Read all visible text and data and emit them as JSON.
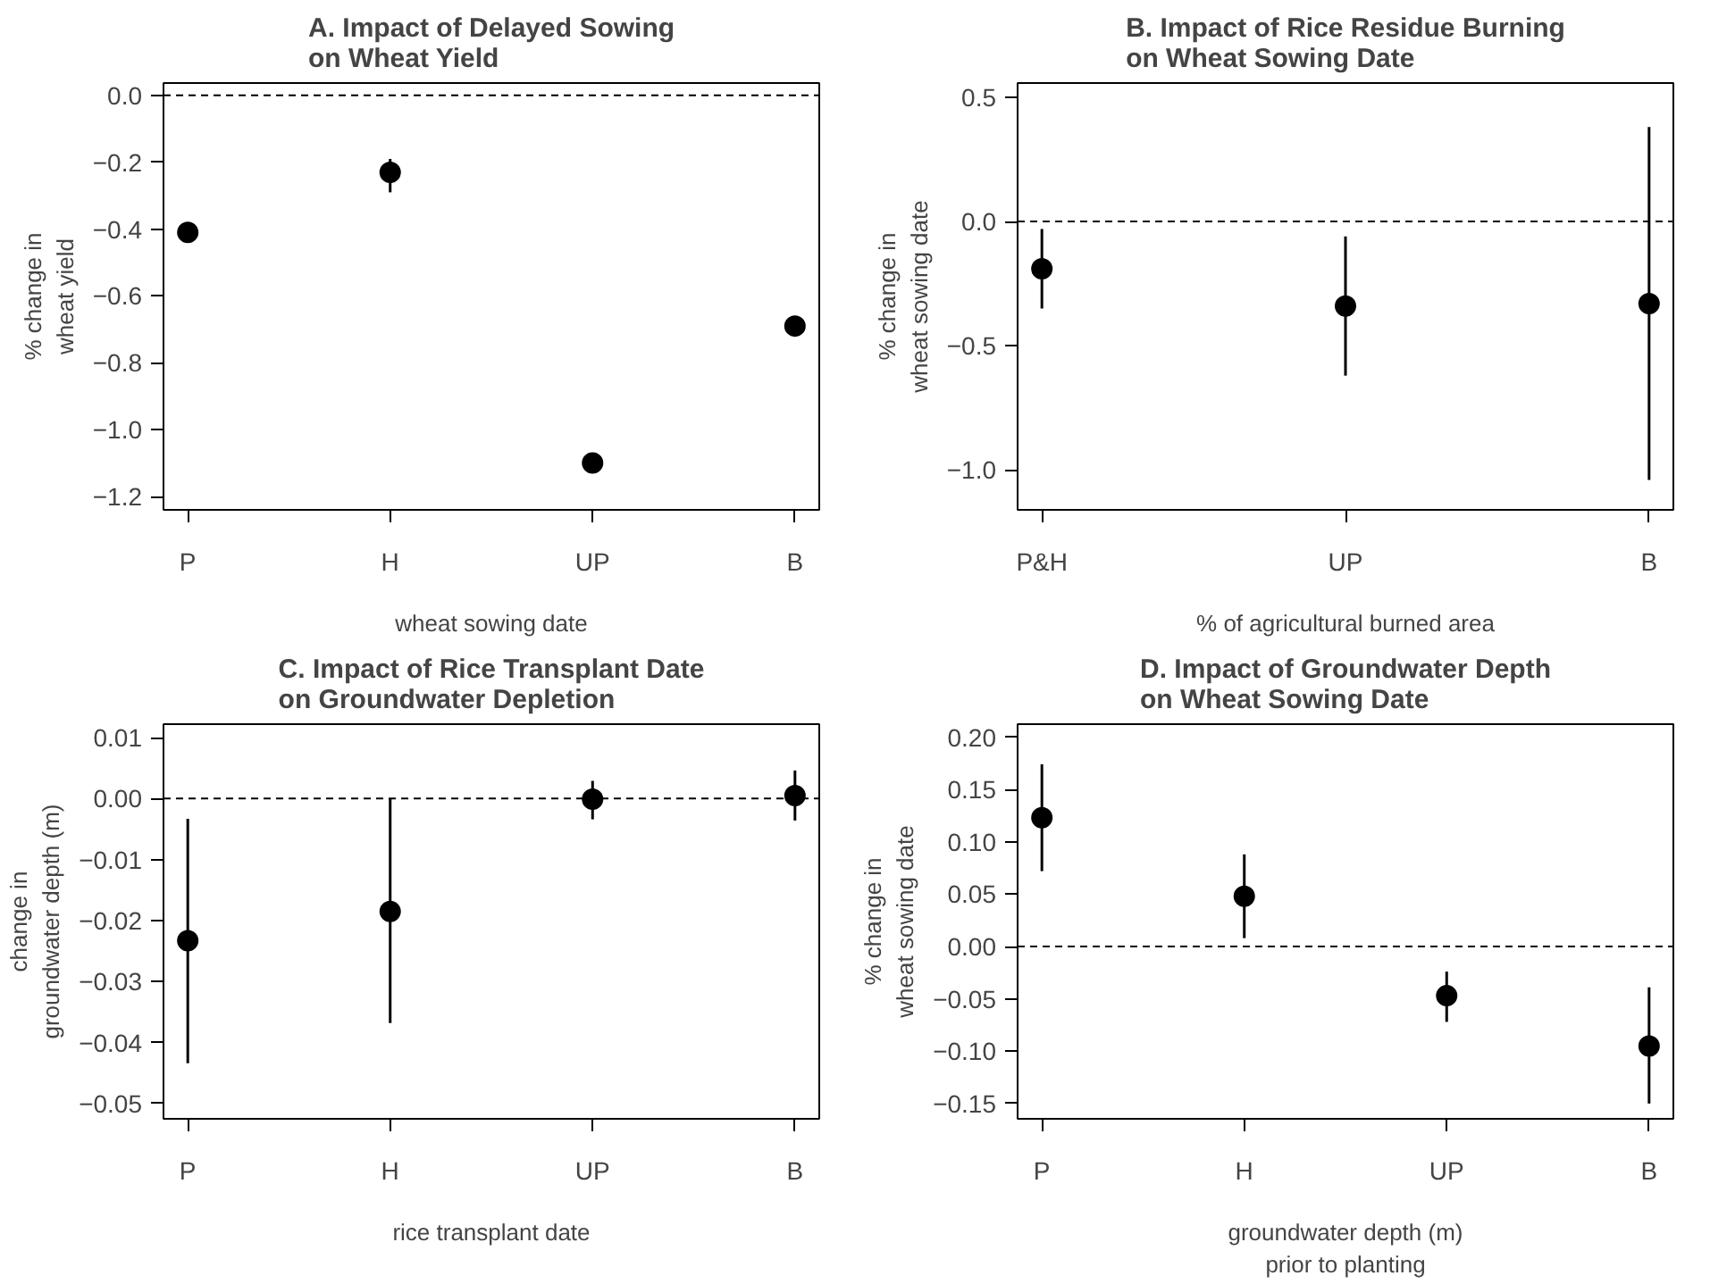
{
  "chart_data": [
    {
      "type": "scatter",
      "title": "A. Impact of Delayed Sowing\non Wheat Yield",
      "xlabel": "wheat sowing date",
      "ylabel": "% change in\nwheat yield",
      "categories": [
        "P",
        "H",
        "UP",
        "B"
      ],
      "values": [
        -0.41,
        -0.23,
        -1.1,
        -0.69
      ],
      "errors": [
        null,
        [
          -0.29,
          -0.19
        ],
        null,
        null
      ],
      "color": "#000000",
      "marker": "circle",
      "ylim": [
        -1.24,
        0.037
      ],
      "yticks": [
        {
          "value": 0,
          "label": "0.0"
        },
        {
          "value": -0.2,
          "label": "−0.2"
        },
        {
          "value": -0.4,
          "label": "−0.4"
        },
        {
          "value": -0.6,
          "label": "−0.6"
        },
        {
          "value": -0.8,
          "label": "−0.8"
        },
        {
          "value": -1.0,
          "label": "−1.0"
        },
        {
          "value": -1.2,
          "label": "−1.2"
        }
      ],
      "ref_lines": [
        {
          "axis": "y",
          "value": 0,
          "line_style": "dashed"
        }
      ]
    },
    {
      "type": "scatter",
      "title": "B. Impact of Rice Residue Burning\non Wheat Sowing Date",
      "xlabel": "% of agricultural burned area",
      "ylabel": "% change in\nwheat sowing date",
      "categories": [
        "P&H",
        "UP",
        "B"
      ],
      "values": [
        -0.19,
        -0.34,
        -0.33
      ],
      "errors": [
        [
          -0.35,
          -0.03
        ],
        [
          -0.62,
          -0.06
        ],
        [
          -1.04,
          0.38
        ]
      ],
      "color": "#000000",
      "marker": "circle",
      "ylim": [
        -1.16,
        0.557
      ],
      "yticks": [
        {
          "value": 0.5,
          "label": "0.5"
        },
        {
          "value": 0,
          "label": "0.0"
        },
        {
          "value": -0.5,
          "label": "−0.5"
        },
        {
          "value": -1.0,
          "label": "−1.0"
        }
      ],
      "ref_lines": [
        {
          "axis": "y",
          "value": 0,
          "line_style": "dashed"
        }
      ]
    },
    {
      "type": "scatter",
      "title": "C. Impact of Rice Transplant Date\non Groundwater Depletion",
      "xlabel": "rice transplant date",
      "ylabel": "change in\ngroundwater depth (m)",
      "categories": [
        "P",
        "H",
        "UP",
        "B"
      ],
      "values": [
        -0.0233,
        -0.0185,
        -0.0001,
        0.0005
      ],
      "errors": [
        [
          -0.0434,
          -0.0033
        ],
        [
          -0.0368,
          -0.0001
        ],
        [
          -0.0034,
          0.0029
        ],
        [
          -0.0036,
          0.0046
        ]
      ],
      "color": "#000000",
      "marker": "circle",
      "ylim": [
        -0.0525,
        0.0122
      ],
      "yticks": [
        {
          "value": 0.01,
          "label": "0.01"
        },
        {
          "value": 0,
          "label": "0.00"
        },
        {
          "value": -0.01,
          "label": "−0.01"
        },
        {
          "value": -0.02,
          "label": "−0.02"
        },
        {
          "value": -0.03,
          "label": "−0.03"
        },
        {
          "value": -0.04,
          "label": "−0.04"
        },
        {
          "value": -0.05,
          "label": "−0.05"
        }
      ],
      "ref_lines": [
        {
          "axis": "y",
          "value": 0,
          "line_style": "dashed"
        }
      ]
    },
    {
      "type": "scatter",
      "title": "D. Impact of Groundwater Depth\non Wheat Sowing Date",
      "xlabel": "groundwater depth (m)\nprior to planting",
      "ylabel": "% change in\nwheat sowing date",
      "categories": [
        "P",
        "H",
        "UP",
        "B"
      ],
      "values": [
        0.123,
        0.048,
        -0.047,
        -0.095
      ],
      "errors": [
        [
          0.072,
          0.174
        ],
        [
          0.008,
          0.088
        ],
        [
          -0.072,
          -0.024
        ],
        [
          -0.15,
          -0.039
        ]
      ],
      "color": "#000000",
      "marker": "circle",
      "ylim": [
        -0.1646,
        0.2124
      ],
      "yticks": [
        {
          "value": 0.2,
          "label": "0.20"
        },
        {
          "value": 0.15,
          "label": "0.15"
        },
        {
          "value": 0.1,
          "label": "0.10"
        },
        {
          "value": 0.05,
          "label": "0.05"
        },
        {
          "value": 0,
          "label": "0.00"
        },
        {
          "value": -0.05,
          "label": "−0.05"
        },
        {
          "value": -0.1,
          "label": "−0.10"
        },
        {
          "value": -0.15,
          "label": "−0.15"
        }
      ],
      "ref_lines": [
        {
          "axis": "y",
          "value": 0,
          "line_style": "dashed"
        }
      ]
    }
  ]
}
